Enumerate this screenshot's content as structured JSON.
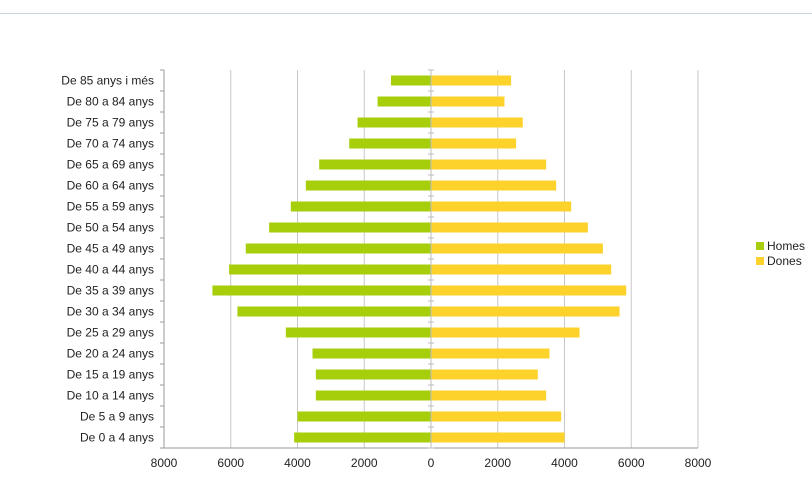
{
  "chart_data": {
    "type": "bar",
    "orientation": "horizontal",
    "categories": [
      "De 85 anys i més",
      "De 80 a 84 anys",
      "De 75 a 79 anys",
      "De 70 a 74 anys",
      "De 65 a 69 anys",
      "De 60 a 64 anys",
      "De 55 a 59 anys",
      "De 50 a 54 anys",
      "De 45 a 49 anys",
      "De 40 a 44 anys",
      "De 35 a 39 anys",
      "De 30 a 34 anys",
      "De 25 a 29 anys",
      "De 20 a 24 anys",
      "De 15 a 19 anys",
      "De 10 a 14 anys",
      "De 5 a 9 anys",
      "De 0 a 4 anys"
    ],
    "series": [
      {
        "name": "Homes",
        "color": "#a6ce0a",
        "values": [
          1200,
          1600,
          2200,
          2450,
          3350,
          3750,
          4200,
          4850,
          5550,
          6050,
          6550,
          5800,
          4350,
          3550,
          3450,
          3450,
          4000,
          4100
        ]
      },
      {
        "name": "Dones",
        "color": "#fdd22a",
        "values": [
          2400,
          2200,
          2750,
          2550,
          3450,
          3750,
          4200,
          4700,
          5150,
          5400,
          5850,
          5650,
          4450,
          3550,
          3200,
          3450,
          3900,
          4000
        ]
      }
    ],
    "xlim": [
      -8000,
      8000
    ],
    "xticks": [
      -8000,
      -6000,
      -4000,
      -2000,
      0,
      2000,
      4000,
      6000,
      8000
    ],
    "xtick_labels": [
      "8000",
      "6000",
      "4000",
      "2000",
      "0",
      "2000",
      "4000",
      "6000",
      "8000"
    ],
    "grid": true,
    "legend_position": "right"
  }
}
